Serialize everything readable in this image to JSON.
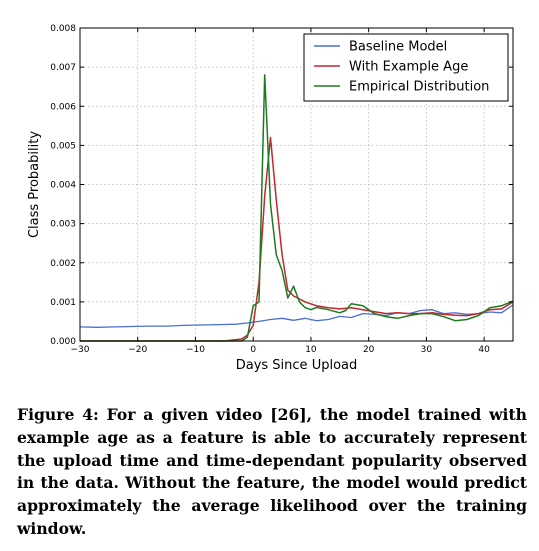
{
  "caption": "Figure 4: For a given video [26], the model trained with example age as a feature is able to accurately represent the upload time and time-dependant popularity observed in the data. Without the feature, the model would predict approximately the average likelihood over the training window.",
  "chart_data": {
    "type": "line",
    "title": "",
    "xlabel": "Days Since Upload",
    "ylabel": "Class Probability",
    "xlim": [
      -30,
      45
    ],
    "ylim": [
      0,
      0.008
    ],
    "xticks": [
      -30,
      -20,
      -10,
      0,
      10,
      20,
      30,
      40
    ],
    "xtick_labels": [
      "−30",
      "−20",
      "−10",
      "0",
      "10",
      "20",
      "30",
      "40"
    ],
    "yticks": [
      0,
      0.001,
      0.002,
      0.003,
      0.004,
      0.005,
      0.006,
      0.007,
      0.008
    ],
    "ytick_labels": [
      "0.000",
      "0.001",
      "0.002",
      "0.003",
      "0.004",
      "0.005",
      "0.006",
      "0.007",
      "0.008"
    ],
    "grid": true,
    "legend_position": "top-right",
    "series": [
      {
        "name": "Baseline Model",
        "color": "#4a6fd6",
        "points": [
          [
            -30,
            0.00036
          ],
          [
            -27,
            0.00035
          ],
          [
            -24,
            0.00036
          ],
          [
            -21,
            0.00037
          ],
          [
            -18,
            0.00038
          ],
          [
            -15,
            0.00038
          ],
          [
            -12,
            0.0004
          ],
          [
            -9,
            0.00041
          ],
          [
            -6,
            0.00042
          ],
          [
            -3,
            0.00043
          ],
          [
            -1,
            0.00046
          ],
          [
            1,
            0.0005
          ],
          [
            3,
            0.00055
          ],
          [
            5,
            0.00058
          ],
          [
            7,
            0.00053
          ],
          [
            9,
            0.00058
          ],
          [
            11,
            0.00052
          ],
          [
            13,
            0.00055
          ],
          [
            15,
            0.00063
          ],
          [
            17,
            0.0006
          ],
          [
            19,
            0.0007
          ],
          [
            21,
            0.00068
          ],
          [
            23,
            0.00065
          ],
          [
            25,
            0.00072
          ],
          [
            27,
            0.0007
          ],
          [
            29,
            0.00078
          ],
          [
            31,
            0.0008
          ],
          [
            33,
            0.0007
          ],
          [
            35,
            0.00072
          ],
          [
            37,
            0.00068
          ],
          [
            39,
            0.0007
          ],
          [
            41,
            0.00074
          ],
          [
            43,
            0.00072
          ],
          [
            45,
            0.00092
          ]
        ]
      },
      {
        "name": "With Example Age",
        "color": "#c0282f",
        "points": [
          [
            -30,
            0.0
          ],
          [
            -5,
            0.0
          ],
          [
            -2,
            5e-05
          ],
          [
            -1,
            0.00015
          ],
          [
            0,
            0.0004
          ],
          [
            1,
            0.0015
          ],
          [
            2,
            0.0037
          ],
          [
            3,
            0.0052
          ],
          [
            4,
            0.0036
          ],
          [
            5,
            0.0022
          ],
          [
            6,
            0.0013
          ],
          [
            7,
            0.00115
          ],
          [
            9,
            0.001
          ],
          [
            11,
            0.0009
          ],
          [
            13,
            0.00085
          ],
          [
            15,
            0.00082
          ],
          [
            17,
            0.00085
          ],
          [
            19,
            0.0008
          ],
          [
            21,
            0.00075
          ],
          [
            23,
            0.0007
          ],
          [
            25,
            0.00072
          ],
          [
            27,
            0.0007
          ],
          [
            29,
            0.0007
          ],
          [
            31,
            0.00072
          ],
          [
            33,
            0.00068
          ],
          [
            35,
            0.00066
          ],
          [
            37,
            0.00065
          ],
          [
            39,
            0.0007
          ],
          [
            41,
            0.0008
          ],
          [
            43,
            0.00082
          ],
          [
            45,
            0.001
          ]
        ]
      },
      {
        "name": "Empirical Distribution",
        "color": "#1f7a1f",
        "points": [
          [
            -30,
            0.0
          ],
          [
            -4,
            0.0
          ],
          [
            -2,
            0.0
          ],
          [
            -1,
            0.0001
          ],
          [
            0,
            0.0009
          ],
          [
            1,
            0.001
          ],
          [
            2,
            0.0068
          ],
          [
            3,
            0.0035
          ],
          [
            4,
            0.0022
          ],
          [
            5,
            0.0018
          ],
          [
            6,
            0.0011
          ],
          [
            7,
            0.0014
          ],
          [
            8,
            0.001
          ],
          [
            9,
            0.00085
          ],
          [
            10,
            0.0008
          ],
          [
            11,
            0.00086
          ],
          [
            13,
            0.0008
          ],
          [
            15,
            0.00072
          ],
          [
            16,
            0.00078
          ],
          [
            17,
            0.00095
          ],
          [
            19,
            0.0009
          ],
          [
            21,
            0.0007
          ],
          [
            23,
            0.00062
          ],
          [
            25,
            0.00058
          ],
          [
            27,
            0.00065
          ],
          [
            29,
            0.0007
          ],
          [
            31,
            0.0007
          ],
          [
            33,
            0.00062
          ],
          [
            35,
            0.00052
          ],
          [
            37,
            0.00055
          ],
          [
            39,
            0.00065
          ],
          [
            41,
            0.00085
          ],
          [
            43,
            0.0009
          ],
          [
            45,
            0.00102
          ]
        ]
      }
    ]
  }
}
